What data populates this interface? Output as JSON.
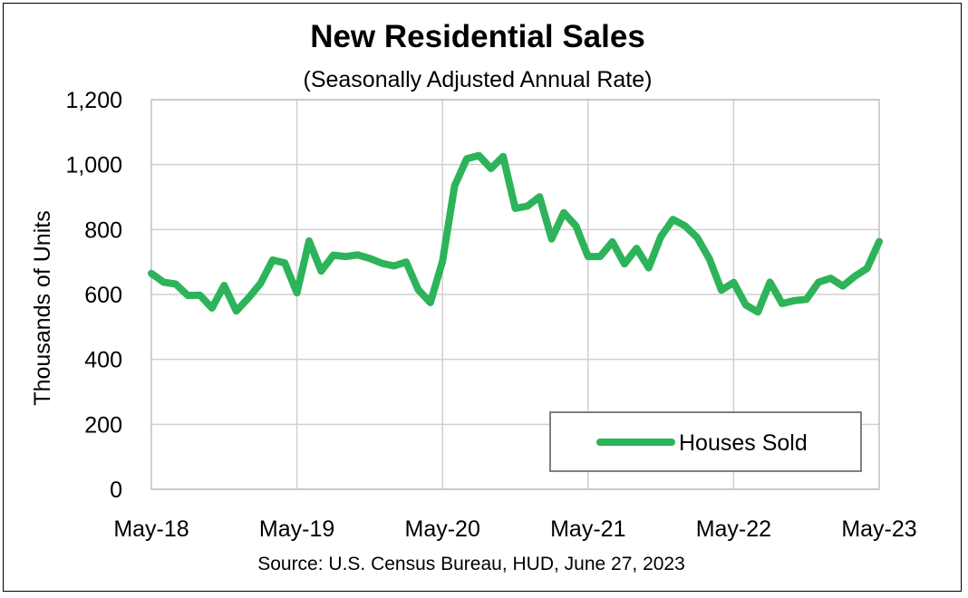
{
  "chart_data": {
    "type": "line",
    "title": "New Residential Sales",
    "subtitle": "(Seasonally Adjusted Annual Rate)",
    "xlabel": "",
    "ylabel": "Thousands of Units",
    "source": "Source:  U.S. Census Bureau, HUD, June 27, 2023",
    "ylim": [
      0,
      1200
    ],
    "yticks": [
      "0",
      "200",
      "400",
      "600",
      "800",
      "1,000",
      "1,200"
    ],
    "xticks": [
      "May-18",
      "May-19",
      "May-20",
      "May-21",
      "May-22",
      "May-23"
    ],
    "grid": true,
    "legend": "bottom-right",
    "line_color": "#2db35a",
    "series": [
      {
        "name": "Houses Sold",
        "x": [
          "May-18",
          "Jun-18",
          "Jul-18",
          "Aug-18",
          "Sep-18",
          "Oct-18",
          "Nov-18",
          "Dec-18",
          "Jan-19",
          "Feb-19",
          "Mar-19",
          "Apr-19",
          "May-19",
          "Jun-19",
          "Jul-19",
          "Aug-19",
          "Sep-19",
          "Oct-19",
          "Nov-19",
          "Dec-19",
          "Jan-20",
          "Feb-20",
          "Mar-20",
          "Apr-20",
          "May-20",
          "Jun-20",
          "Jul-20",
          "Aug-20",
          "Sep-20",
          "Oct-20",
          "Nov-20",
          "Dec-20",
          "Jan-21",
          "Feb-21",
          "Mar-21",
          "Apr-21",
          "May-21",
          "Jun-21",
          "Jul-21",
          "Aug-21",
          "Sep-21",
          "Oct-21",
          "Nov-21",
          "Dec-21",
          "Jan-22",
          "Feb-22",
          "Mar-22",
          "Apr-22",
          "May-22",
          "Jun-22",
          "Jul-22",
          "Aug-22",
          "Sep-22",
          "Oct-22",
          "Nov-22",
          "Dec-22",
          "Jan-23",
          "Feb-23",
          "Mar-23",
          "Apr-23",
          "May-23"
        ],
        "values": [
          665,
          638,
          632,
          597,
          598,
          558,
          628,
          549,
          589,
          634,
          706,
          697,
          605,
          765,
          672,
          721,
          717,
          722,
          711,
          696,
          688,
          700,
          615,
          575,
          702,
          935,
          1018,
          1028,
          988,
          1025,
          865,
          872,
          901,
          771,
          852,
          811,
          717,
          717,
          762,
          694,
          742,
          682,
          778,
          831,
          811,
          775,
          710,
          613,
          637,
          568,
          546,
          638,
          572,
          581,
          585,
          638,
          650,
          626,
          656,
          680,
          763
        ]
      }
    ]
  }
}
